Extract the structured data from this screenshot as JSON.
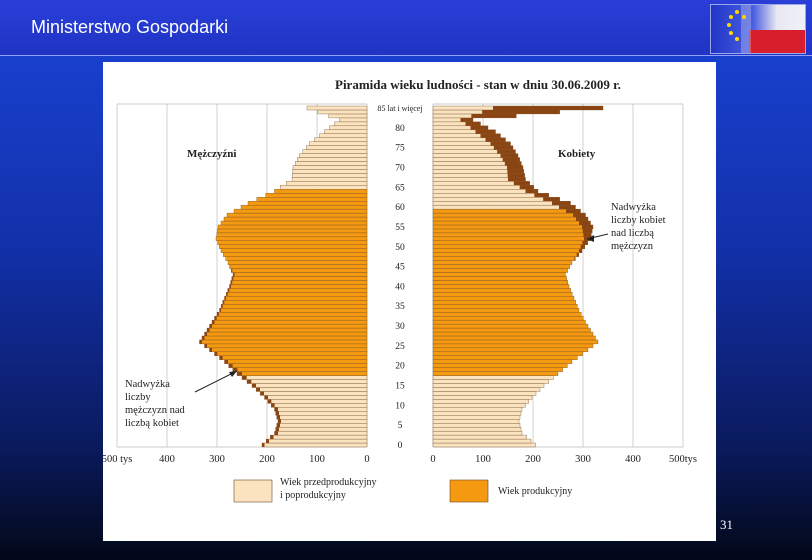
{
  "header": {
    "title": "Ministerstwo Gospodarki"
  },
  "slide": {
    "number": "31"
  },
  "colors": {
    "pre_post": "#fbe3bf",
    "productive": "#f59a10",
    "excess": "#8b4513",
    "outline": "#6b4a2a"
  },
  "chart_data": {
    "type": "bar",
    "orientation": "horizontal-pyramid",
    "title": "Piramida wieku ludności - stan w dniu 30.06.2009 r.",
    "left_label": "Mężczyźni",
    "right_label": "Kobiety",
    "x_unit": "tys",
    "x_ticks": [
      "500 tys",
      "400",
      "300",
      "200",
      "100",
      "0",
      "100",
      "200",
      "300",
      "400",
      "500tys"
    ],
    "xlim": [
      0,
      500
    ],
    "y_tick_labels": [
      "85 lat i więcej",
      "80",
      "75",
      "70",
      "65",
      "60",
      "55",
      "50",
      "45",
      "40",
      "35",
      "30",
      "25",
      "20",
      "15",
      "10",
      "5",
      "0"
    ],
    "y_tick_ages": [
      85,
      80,
      75,
      70,
      65,
      60,
      55,
      50,
      45,
      40,
      35,
      30,
      25,
      20,
      15,
      10,
      5,
      0
    ],
    "age_step": 1,
    "working_age_men": [
      18,
      64
    ],
    "working_age_women": [
      18,
      59
    ],
    "men": [
      {
        "age": 0,
        "value": 210
      },
      {
        "age": 3,
        "value": 185
      },
      {
        "age": 6,
        "value": 178
      },
      {
        "age": 9,
        "value": 185
      },
      {
        "age": 12,
        "value": 205
      },
      {
        "age": 15,
        "value": 230
      },
      {
        "age": 18,
        "value": 260
      },
      {
        "age": 21,
        "value": 285
      },
      {
        "age": 24,
        "value": 315
      },
      {
        "age": 26,
        "value": 335
      },
      {
        "age": 28,
        "value": 325
      },
      {
        "age": 31,
        "value": 310
      },
      {
        "age": 34,
        "value": 295
      },
      {
        "age": 37,
        "value": 285
      },
      {
        "age": 40,
        "value": 275
      },
      {
        "age": 43,
        "value": 268
      },
      {
        "age": 46,
        "value": 278
      },
      {
        "age": 49,
        "value": 292
      },
      {
        "age": 52,
        "value": 302
      },
      {
        "age": 55,
        "value": 298
      },
      {
        "age": 58,
        "value": 280
      },
      {
        "age": 61,
        "value": 238
      },
      {
        "age": 64,
        "value": 185
      },
      {
        "age": 67,
        "value": 150
      },
      {
        "age": 70,
        "value": 148
      },
      {
        "age": 73,
        "value": 135
      },
      {
        "age": 76,
        "value": 115
      },
      {
        "age": 79,
        "value": 85
      },
      {
        "age": 82,
        "value": 55
      },
      {
        "age": 85,
        "value": 120
      }
    ],
    "women": [
      {
        "age": 0,
        "value": 205
      },
      {
        "age": 3,
        "value": 178
      },
      {
        "age": 6,
        "value": 172
      },
      {
        "age": 9,
        "value": 178
      },
      {
        "age": 12,
        "value": 198
      },
      {
        "age": 15,
        "value": 222
      },
      {
        "age": 18,
        "value": 250
      },
      {
        "age": 21,
        "value": 278
      },
      {
        "age": 24,
        "value": 310
      },
      {
        "age": 26,
        "value": 330
      },
      {
        "age": 28,
        "value": 320
      },
      {
        "age": 31,
        "value": 305
      },
      {
        "age": 34,
        "value": 292
      },
      {
        "age": 37,
        "value": 282
      },
      {
        "age": 40,
        "value": 272
      },
      {
        "age": 43,
        "value": 265
      },
      {
        "age": 46,
        "value": 278
      },
      {
        "age": 49,
        "value": 298
      },
      {
        "age": 52,
        "value": 315
      },
      {
        "age": 55,
        "value": 320
      },
      {
        "age": 58,
        "value": 305
      },
      {
        "age": 61,
        "value": 275
      },
      {
        "age": 64,
        "value": 210
      },
      {
        "age": 67,
        "value": 185
      },
      {
        "age": 70,
        "value": 180
      },
      {
        "age": 73,
        "value": 170
      },
      {
        "age": 76,
        "value": 155
      },
      {
        "age": 79,
        "value": 125
      },
      {
        "age": 82,
        "value": 80
      },
      {
        "age": 85,
        "value": 340
      }
    ],
    "annotations": {
      "men": [
        "Nadwyżka",
        "liczby",
        "mężczyzn nad",
        "liczbą kobiet"
      ],
      "women": [
        "Nadwyżka",
        "liczby kobiet",
        "nad liczbą",
        "mężczyzn"
      ]
    },
    "legend": [
      {
        "label_lines": [
          "Wiek przedprodukcyjny",
          "i poprodukcyjny"
        ],
        "color": "#fbe3bf"
      },
      {
        "label_lines": [
          "Wiek produkcyjny"
        ],
        "color": "#f59a10"
      }
    ],
    "legend_position": "bottom",
    "grid": true
  }
}
